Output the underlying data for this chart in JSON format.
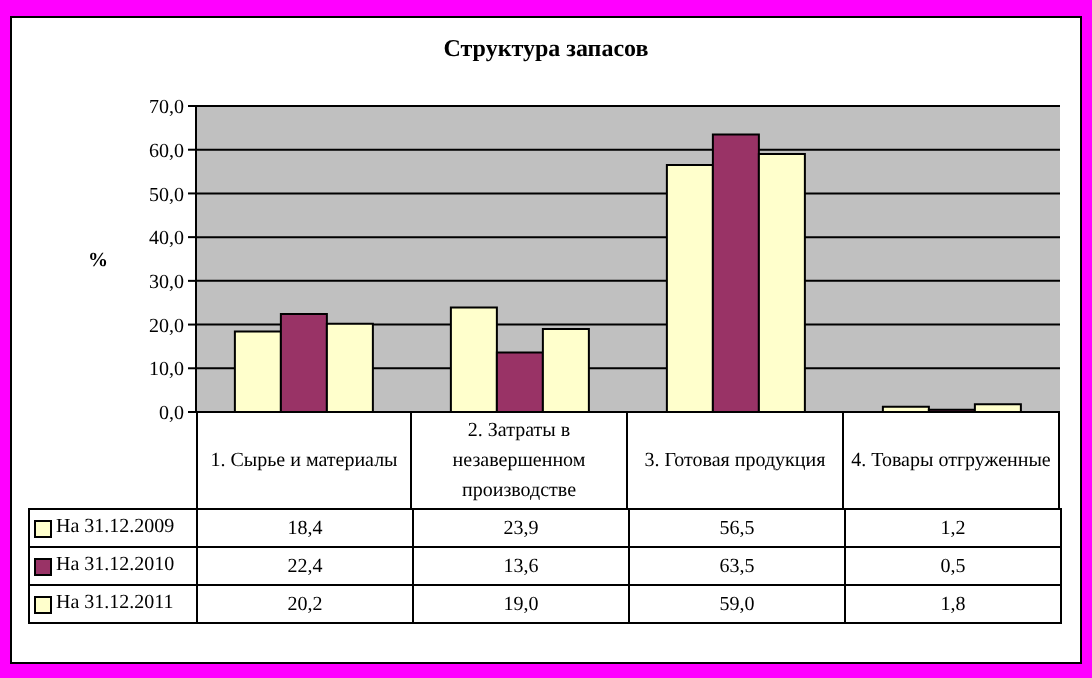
{
  "chart_data": {
    "type": "bar",
    "title": "Структура запасов",
    "ylabel": "%",
    "categories": [
      "1. Сырье и материалы",
      "2. Затраты в незавершенном производстве",
      "3. Готовая продукция",
      "4. Товары отгруженные"
    ],
    "series": [
      {
        "name": "На 31.12.2009",
        "color": "#ffffcc",
        "values": [
          18.4,
          23.9,
          56.5,
          1.2
        ],
        "value_labels": [
          "18,4",
          "23,9",
          "56,5",
          "1,2"
        ]
      },
      {
        "name": "На 31.12.2010",
        "color": "#993366",
        "values": [
          22.4,
          13.6,
          63.5,
          0.5
        ],
        "value_labels": [
          "22,4",
          "13,6",
          "63,5",
          "0,5"
        ]
      },
      {
        "name": "На 31.12.2011",
        "color": "#ffffcc",
        "values": [
          20.2,
          19.0,
          59.0,
          1.8
        ],
        "value_labels": [
          "20,2",
          "19,0",
          "59,0",
          "1,8"
        ]
      }
    ],
    "ylim": [
      0,
      70
    ],
    "yticks": [
      {
        "value": 0,
        "label": "0,0"
      },
      {
        "value": 10,
        "label": "10,0"
      },
      {
        "value": 20,
        "label": "20,0"
      },
      {
        "value": 30,
        "label": "30,0"
      },
      {
        "value": 40,
        "label": "40,0"
      },
      {
        "value": 50,
        "label": "50,0"
      },
      {
        "value": 60,
        "label": "60,0"
      },
      {
        "value": 70,
        "label": "70,0"
      }
    ],
    "grid": "y",
    "legend": "bottom"
  }
}
